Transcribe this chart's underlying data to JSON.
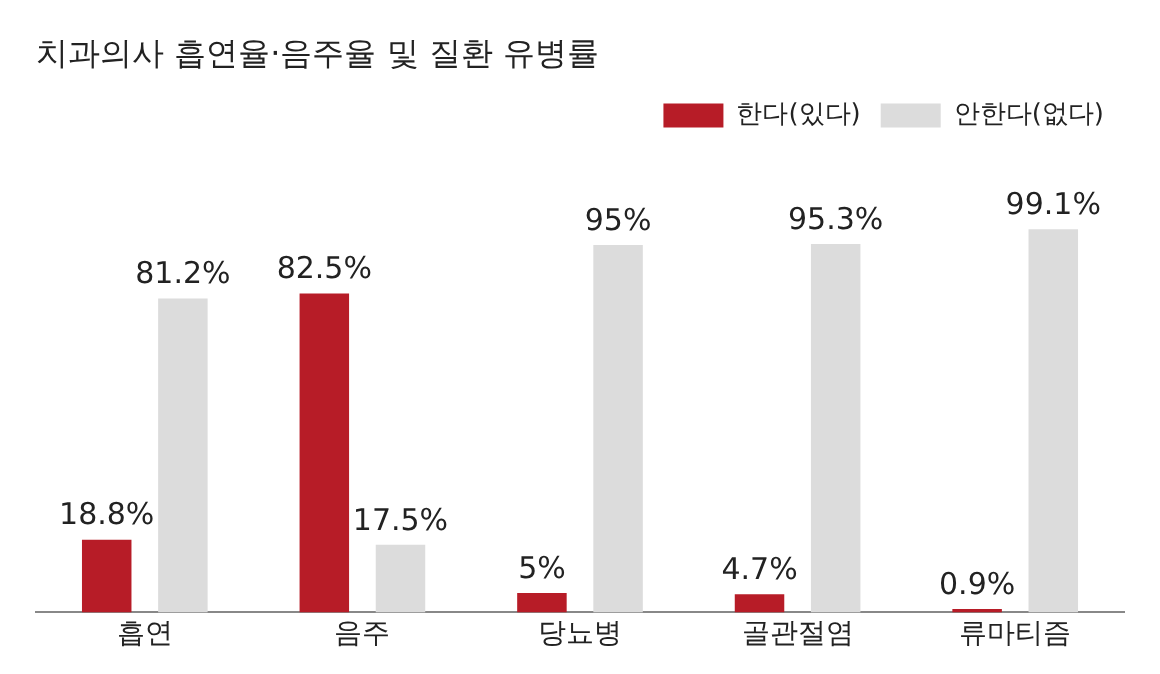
{
  "chart_data": {
    "type": "bar",
    "title": "치과의사 흡연율·음주율 및 질환 유병률",
    "categories": [
      "흡연",
      "음주",
      "당뇨병",
      "골관절염",
      "류마티즘"
    ],
    "series": [
      {
        "name": "한다(있다)",
        "color": "#b71c27",
        "values": [
          18.8,
          82.5,
          5,
          4.7,
          0.9
        ],
        "value_labels": [
          "18.8%",
          "82.5%",
          "5%",
          "4.7%",
          "0.9%"
        ]
      },
      {
        "name": "안한다(없다)",
        "color": "#dcdcdc",
        "values": [
          81.2,
          17.5,
          95,
          95.3,
          99.1
        ],
        "value_labels": [
          "81.2%",
          "17.5%",
          "95%",
          "95.3%",
          "99.1%"
        ]
      }
    ],
    "legend": "top right",
    "grid": false,
    "tick_labels": "x"
  }
}
